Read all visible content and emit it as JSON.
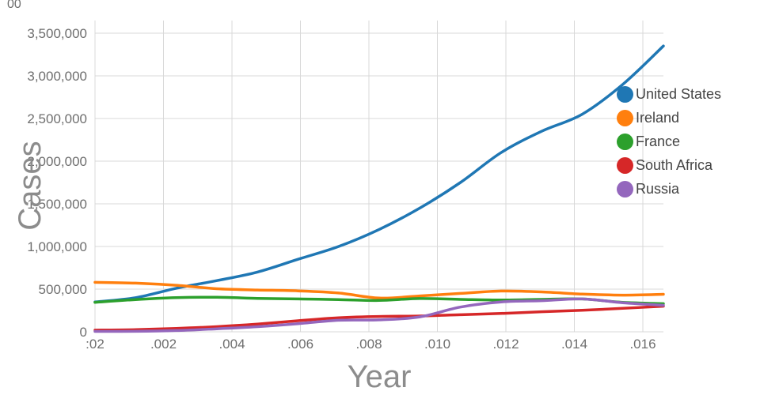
{
  "chart_data": {
    "type": "line",
    "title": "",
    "xlabel": "Year",
    "ylabel": "Cases",
    "clipped_top_label": "00",
    "grid": true,
    "legend_position": "right",
    "x_tick_labels": [
      ":02",
      ".002",
      ".004",
      ".006",
      ".008",
      ".010",
      ".012",
      ".014",
      ".016"
    ],
    "y_ticks": [
      0,
      500000,
      1000000,
      1500000,
      2000000,
      2500000,
      3000000,
      3500000
    ],
    "y_tick_labels": [
      "0",
      "500,000",
      "1,000,000",
      "1,500,000",
      "2,000,000",
      "2,500,000",
      "3,000,000",
      "3,500,000"
    ],
    "ylim": [
      0,
      3500000
    ],
    "x": [
      2002,
      2003,
      2004,
      2005,
      2006,
      2007,
      2008,
      2009,
      2010,
      2011,
      2012,
      2013,
      2014,
      2015,
      2016
    ],
    "colors": {
      "grid": "#d9d9d9",
      "tick_text": "#6e6e6e",
      "axis_title_text": "#8c8c8c"
    },
    "series": [
      {
        "name": "United States",
        "color": "#1f77b4",
        "values": [
          350000,
          400000,
          510000,
          600000,
          700000,
          850000,
          1000000,
          1200000,
          1450000,
          1750000,
          2100000,
          2350000,
          2550000,
          2900000,
          3350000
        ]
      },
      {
        "name": "Ireland",
        "color": "#ff7f0e",
        "values": [
          580000,
          570000,
          545000,
          505000,
          490000,
          480000,
          455000,
          395000,
          420000,
          450000,
          478000,
          468000,
          442000,
          430000,
          440000
        ]
      },
      {
        "name": "France",
        "color": "#2ca02c",
        "values": [
          345000,
          378000,
          400000,
          405000,
          392000,
          385000,
          378000,
          368000,
          390000,
          380000,
          372000,
          380000,
          385000,
          345000,
          330000
        ]
      },
      {
        "name": "South Africa",
        "color": "#d62728",
        "values": [
          20000,
          26000,
          40000,
          60000,
          90000,
          130000,
          165000,
          180000,
          185000,
          200000,
          215000,
          235000,
          252000,
          275000,
          300000
        ]
      },
      {
        "name": "Russia",
        "color": "#9467bd",
        "values": [
          5000,
          6000,
          15000,
          35000,
          60000,
          95000,
          135000,
          140000,
          175000,
          290000,
          350000,
          365000,
          385000,
          340000,
          310000
        ]
      }
    ]
  }
}
